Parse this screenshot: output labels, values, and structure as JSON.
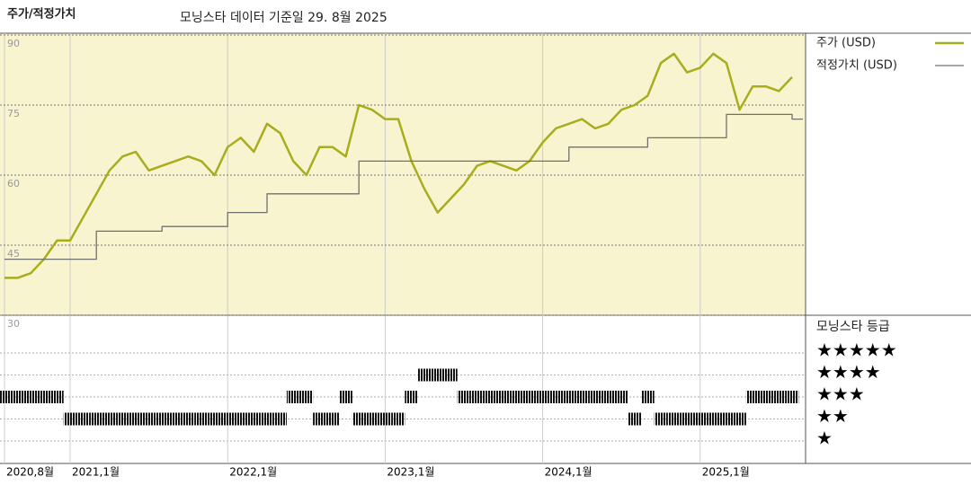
{
  "chart_data": {
    "type": "line",
    "title": "주가/적정가치",
    "subtitle": "모닝스타 데이터 기준일 29. 8월 2025",
    "x": [
      "2020-08",
      "2020-09",
      "2020-10",
      "2020-11",
      "2020-12",
      "2021-01",
      "2021-02",
      "2021-03",
      "2021-04",
      "2021-05",
      "2021-06",
      "2021-07",
      "2021-08",
      "2021-09",
      "2021-10",
      "2021-11",
      "2021-12",
      "2022-01",
      "2022-02",
      "2022-03",
      "2022-04",
      "2022-05",
      "2022-06",
      "2022-07",
      "2022-08",
      "2022-09",
      "2022-10",
      "2022-11",
      "2022-12",
      "2023-01",
      "2023-02",
      "2023-03",
      "2023-04",
      "2023-05",
      "2023-06",
      "2023-07",
      "2023-08",
      "2023-09",
      "2023-10",
      "2023-11",
      "2023-12",
      "2024-01",
      "2024-02",
      "2024-03",
      "2024-04",
      "2024-05",
      "2024-06",
      "2024-07",
      "2024-08",
      "2024-09",
      "2024-10",
      "2024-11",
      "2024-12",
      "2025-01",
      "2025-02",
      "2025-03",
      "2025-04",
      "2025-05",
      "2025-06",
      "2025-07",
      "2025-08"
    ],
    "xticks": [
      {
        "value": "2020-08",
        "label": "2020,8월"
      },
      {
        "value": "2021-01",
        "label": "2021,1월"
      },
      {
        "value": "2022-01",
        "label": "2022,1월"
      },
      {
        "value": "2023-01",
        "label": "2023,1월"
      },
      {
        "value": "2024-01",
        "label": "2024,1월"
      },
      {
        "value": "2025-01",
        "label": "2025,1월"
      }
    ],
    "ylim": [
      30,
      90
    ],
    "yticks": [
      30,
      45,
      60,
      75,
      90
    ],
    "grid": true,
    "series": [
      {
        "name": "주가 (USD)",
        "color": "#a8ad1e",
        "values": [
          38,
          38,
          39,
          42,
          46,
          46,
          51,
          56,
          61,
          64,
          65,
          61,
          62,
          63,
          64,
          63,
          60,
          66,
          68,
          65,
          71,
          69,
          63,
          60,
          66,
          66,
          64,
          75,
          74,
          72,
          72,
          63,
          57,
          52,
          55,
          58,
          62,
          63,
          62,
          61,
          63,
          67,
          70,
          71,
          72,
          70,
          71,
          74,
          75,
          77,
          84,
          86,
          82,
          83,
          86,
          84,
          74,
          79,
          79,
          78,
          81
        ]
      },
      {
        "name": "적정가치 (USD)",
        "color": "#707070",
        "step": true,
        "values": [
          42,
          42,
          42,
          42,
          42,
          42,
          42,
          48,
          48,
          48,
          48,
          48,
          49,
          49,
          49,
          49,
          49,
          52,
          52,
          52,
          56,
          56,
          56,
          56,
          56,
          56,
          56,
          63,
          63,
          63,
          63,
          63,
          63,
          63,
          63,
          63,
          63,
          63,
          63,
          63,
          63,
          63,
          63,
          66,
          66,
          66,
          66,
          66,
          66,
          68,
          68,
          68,
          68,
          68,
          68,
          73,
          73,
          73,
          73,
          73,
          72
        ]
      }
    ],
    "rating": {
      "title": "모닝스타 등급",
      "levels": [
        {
          "value": 5,
          "label": "★★★★★"
        },
        {
          "value": 4,
          "label": "★★★★"
        },
        {
          "value": 3,
          "label": "★★★"
        },
        {
          "value": 2,
          "label": "★★"
        },
        {
          "value": 1,
          "label": "★"
        }
      ],
      "values": [
        3,
        3,
        3,
        3,
        3,
        2,
        2,
        2,
        2,
        2,
        2,
        2,
        2,
        2,
        2,
        2,
        2,
        2,
        2,
        2,
        2,
        2,
        3,
        3,
        2,
        2,
        3,
        2,
        2,
        2,
        2,
        3,
        4,
        4,
        4,
        3,
        3,
        3,
        3,
        3,
        3,
        3,
        3,
        3,
        3,
        3,
        3,
        3,
        2,
        3,
        2,
        2,
        2,
        2,
        2,
        2,
        2,
        3,
        3,
        3,
        3
      ]
    }
  }
}
